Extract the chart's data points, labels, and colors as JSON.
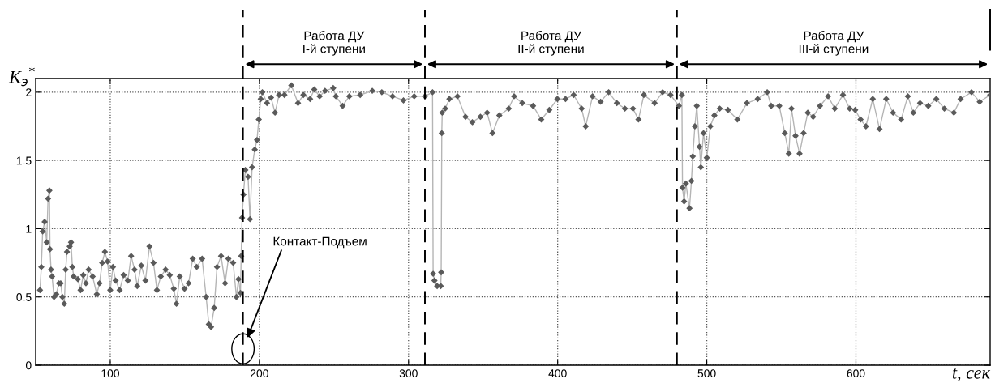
{
  "chart_data": {
    "type": "line",
    "xlabel": "t, сек",
    "ylabel": "K$_{э}$$^{*}$",
    "xlim": [
      50,
      690
    ],
    "ylim": [
      0,
      2.1
    ],
    "xticks": [
      100,
      200,
      300,
      400,
      500,
      600
    ],
    "yticks": [
      0,
      0.5,
      1,
      1.5,
      2
    ],
    "grid": true,
    "marker": "diamond",
    "line_style": "solid",
    "series": [
      {
        "color": "#5a5a5a",
        "x": [
          52.9,
          53.8,
          54.7,
          56,
          57.4,
          58.3,
          59.2,
          59.6,
          60.3,
          61,
          62.3,
          63.8,
          65.6,
          66.8,
          67.9,
          69.2,
          70.1,
          71,
          72.8,
          73.7,
          74.6,
          75.5,
          78.3,
          80.1,
          81.9,
          83.7,
          85.5,
          88.2,
          91,
          92.8,
          94.6,
          96.4,
          98.2,
          100,
          101.8,
          103.6,
          106.3,
          109,
          111.8,
          114,
          116.3,
          118.1,
          120.8,
          123.6,
          126.3,
          129,
          131.3,
          133.9,
          137.1,
          139.9,
          142.6,
          144.4,
          146.6,
          149.8,
          152.5,
          155.3,
          158,
          161.6,
          164.3,
          166.1,
          167.6,
          169.7,
          171.6,
          174.3,
          177,
          179.2,
          182.4,
          184.6,
          186,
          187.3,
          187.8,
          188.4,
          189.3,
          190.6,
          192.4,
          193.7,
          195.1,
          196.9,
          198.4,
          199.6,
          200.9,
          202,
          205.1,
          207.8,
          210.5,
          213.2,
          216.8,
          221.4,
          225.9,
          229.5,
          234,
          236.8,
          240.4,
          244,
          249.5,
          251.3,
          255.8,
          260.3,
          267.6,
          275.7,
          282.1,
          289.3,
          296.6,
          303.8,
          311,
          316.1,
          316.5,
          317.4,
          319.2,
          321.6,
          321.9,
          322.3,
          322.6,
          324.6,
          327.4,
          332.8,
          338.2,
          342.8,
          348.2,
          352.7,
          356.3,
          360.9,
          367.2,
          370.8,
          376.3,
          383.5,
          389,
          394.4,
          399.8,
          405.3,
          410.7,
          416.1,
          418.8,
          423.4,
          428.8,
          434.2,
          439.7,
          445.1,
          450.5,
          454.2,
          457.8,
          465,
          470.4,
          475.7,
          481.3,
          483.3,
          483.7,
          484.8,
          486,
          488.4,
          489.7,
          490.6,
          492,
          493.3,
          495.1,
          496,
          497.8,
          500,
          502.4,
          505.1,
          508.7,
          514.2,
          520.5,
          526.9,
          534.1,
          540.5,
          543.2,
          548.6,
          552.3,
          555,
          556.8,
          559.5,
          562.2,
          564.9,
          567.7,
          571.3,
          575.9,
          581.3,
          585.8,
          591.3,
          595.8,
          599.5,
          603.1,
          606.7,
          611.3,
          615.8,
          620.3,
          624.9,
          630.3,
          634.8,
          638.5,
          643,
          648.5,
          653.9,
          659.3,
          665.7,
          670.2,
          677.5,
          683,
          690
        ],
        "values": [
          0.55,
          0.72,
          0.98,
          1.05,
          0.9,
          1.22,
          1.28,
          0.85,
          0.7,
          0.65,
          0.5,
          0.52,
          0.6,
          0.6,
          0.5,
          0.45,
          0.7,
          0.83,
          0.87,
          0.9,
          0.72,
          0.65,
          0.63,
          0.55,
          0.66,
          0.6,
          0.7,
          0.65,
          0.52,
          0.6,
          0.75,
          0.83,
          0.76,
          0.55,
          0.72,
          0.62,
          0.55,
          0.66,
          0.62,
          0.8,
          0.7,
          0.58,
          0.73,
          0.62,
          0.87,
          0.75,
          0.55,
          0.65,
          0.7,
          0.66,
          0.56,
          0.45,
          0.65,
          0.56,
          0.6,
          0.78,
          0.72,
          0.78,
          0.5,
          0.3,
          0.28,
          0.42,
          0.72,
          0.8,
          0.6,
          0.78,
          0.75,
          0.5,
          0.63,
          0.53,
          0.8,
          1.08,
          1.25,
          1.43,
          1.38,
          1.07,
          1.45,
          1.58,
          1.65,
          1.8,
          1.95,
          2.0,
          1.92,
          1.96,
          1.85,
          1.98,
          1.98,
          2.05,
          1.92,
          1.98,
          1.95,
          2.02,
          1.97,
          2.01,
          2.03,
          1.97,
          1.9,
          1.97,
          1.98,
          2.01,
          2.0,
          1.97,
          1.94,
          1.97,
          1.97,
          2.0,
          0.67,
          0.62,
          0.58,
          0.58,
          0.68,
          1.7,
          1.85,
          1.88,
          1.95,
          1.97,
          1.82,
          1.78,
          1.82,
          1.85,
          1.7,
          1.83,
          1.88,
          1.97,
          1.92,
          1.9,
          1.8,
          1.87,
          1.95,
          1.95,
          1.98,
          1.88,
          1.75,
          1.97,
          1.93,
          2.0,
          1.92,
          1.88,
          1.88,
          1.8,
          1.98,
          1.92,
          2.0,
          1.98,
          1.9,
          1.98,
          1.3,
          1.2,
          1.33,
          1.15,
          1.35,
          1.53,
          1.75,
          1.9,
          1.6,
          1.45,
          1.7,
          1.52,
          1.75,
          1.83,
          1.88,
          1.87,
          1.8,
          1.92,
          1.95,
          2.0,
          1.9,
          1.9,
          1.7,
          1.55,
          1.88,
          1.68,
          1.55,
          1.7,
          1.85,
          1.82,
          1.9,
          1.97,
          1.88,
          1.98,
          1.88,
          1.87,
          1.8,
          1.75,
          1.95,
          1.73,
          1.95,
          1.85,
          1.8,
          1.97,
          1.85,
          1.92,
          1.9,
          1.95,
          1.88,
          1.85,
          1.95,
          2.0,
          1.93,
          1.98
        ]
      }
    ],
    "ref_lines": [
      {
        "axis": "x",
        "value": 189,
        "color": "#000000",
        "line_style": "dashed"
      },
      {
        "axis": "x",
        "value": 311,
        "color": "#000000",
        "line_style": "dashed"
      },
      {
        "axis": "x",
        "value": 480,
        "color": "#000000",
        "line_style": "dashed"
      }
    ],
    "annotations": [
      "Работа ДУ\nI-й ступени",
      "Работа ДУ\nII-й ступени",
      "Работа ДУ\nIII-й ступени",
      "Контакт-Подъем"
    ]
  }
}
